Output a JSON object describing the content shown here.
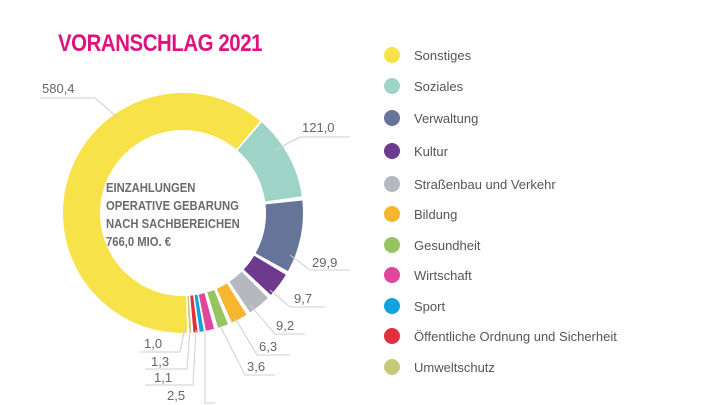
{
  "chart_data": {
    "type": "pie",
    "subtype": "donut",
    "title": "VORANSCHLAG 2021",
    "center_label": [
      "EINZAHLUNGEN",
      "OPERATIVE GEBARUNG",
      "NACH SACHBEREICHEN",
      "766,0 MIO. €"
    ],
    "legend_placement": "right",
    "slices": [
      {
        "name": "Sonstiges",
        "value": 580.4,
        "label": "580,4",
        "color": "#f7e24a"
      },
      {
        "name": "Soziales",
        "value": 121.0,
        "label": "121,0",
        "color": "#9ed3c7"
      },
      {
        "name": "Verwaltung",
        "value": 29.9,
        "label": "29,9",
        "color": "#667499"
      },
      {
        "name": "Kultur",
        "value": 9.7,
        "label": "9,7",
        "color": "#6d3a8e"
      },
      {
        "name": "Straßenbau und Verkehr",
        "value": 9.2,
        "label": "9,2",
        "color": "#b7b7bf"
      },
      {
        "name": "Bildung",
        "value": 6.3,
        "label": "6,3",
        "color": "#f8b630"
      },
      {
        "name": "Gesundheit",
        "value": 3.6,
        "label": "3,6",
        "color": "#97c463"
      },
      {
        "name": "Wirtschaft",
        "value": 2.5,
        "label": "2,5",
        "color": "#e0479a"
      },
      {
        "name": "Sport",
        "value": 1.1,
        "label": "1,1",
        "color": "#12a3dd"
      },
      {
        "name": "Öffentliche Ordnung und Sicherheit",
        "value": 1.3,
        "label": "1,3",
        "color": "#e2313d"
      },
      {
        "name": "Umweltschutz",
        "value": 1.0,
        "label": "1,0",
        "color": "#c6c87b"
      }
    ]
  }
}
